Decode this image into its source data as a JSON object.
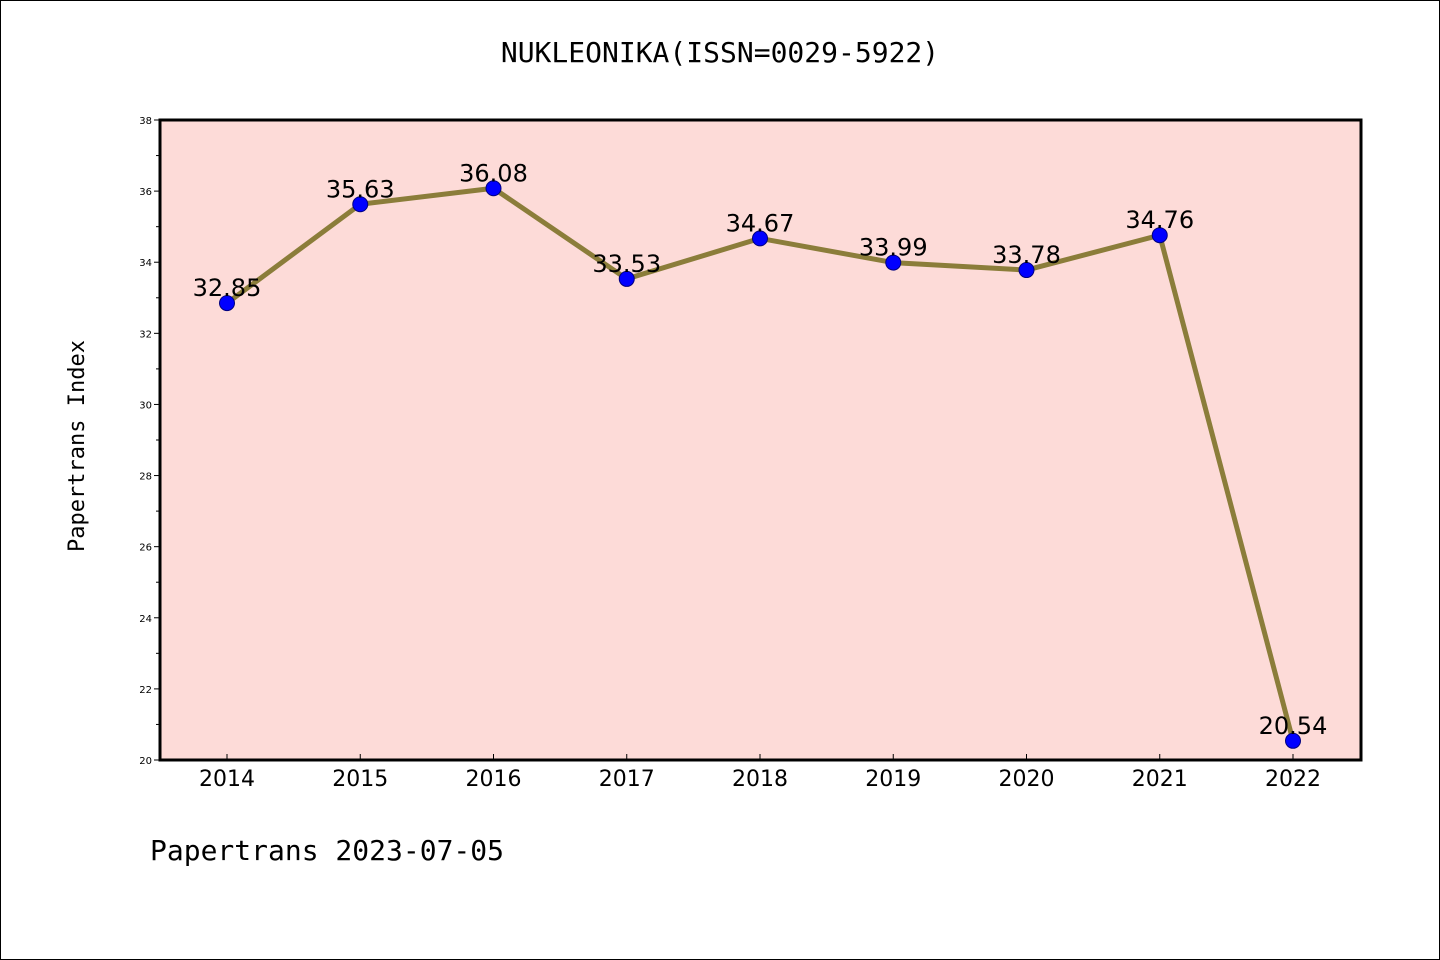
{
  "chart_data": {
    "type": "line",
    "title": "NUKLEONIKA(ISSN=0029-5922)",
    "ylabel": "Papertrans Index",
    "xlabel": "",
    "categories": [
      "2014",
      "2015",
      "2016",
      "2017",
      "2018",
      "2019",
      "2020",
      "2021",
      "2022"
    ],
    "values": [
      32.85,
      35.63,
      36.08,
      33.53,
      34.67,
      33.99,
      33.78,
      34.76,
      20.54
    ],
    "data_labels": [
      "32.85",
      "35.63",
      "36.08",
      "33.53",
      "34.67",
      "33.99",
      "33.78",
      "34.76",
      "20.54"
    ],
    "ylim": [
      20,
      38
    ],
    "yticks": [
      "20",
      "22",
      "24",
      "26",
      "28",
      "30",
      "32",
      "34",
      "36",
      "38"
    ],
    "grid": false,
    "legend": "none",
    "colors": {
      "plot_background": "#fddbd8",
      "line": "#8b7d3a",
      "marker": "#0000ff",
      "marker_edge": "#000080"
    }
  },
  "footer": {
    "text": "Papertrans 2023-07-05"
  }
}
